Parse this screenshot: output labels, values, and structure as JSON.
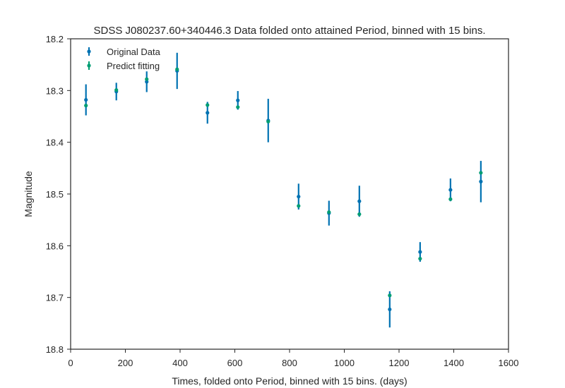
{
  "chart_data": {
    "type": "scatter",
    "title": "SDSS J080237.60+340446.3 Data folded onto attained Period, binned with 15 bins.",
    "xlabel": "Times, folded onto Period, binned with 15 bins. (days)",
    "ylabel": "Magnitude",
    "xlim": [
      0,
      1600
    ],
    "ylim": [
      18.8,
      18.2
    ],
    "y_inverted": true,
    "xticks": [
      "0",
      "200",
      "400",
      "600",
      "800",
      "1000",
      "1200",
      "1400",
      "1600"
    ],
    "yticks": [
      "18.2",
      "18.3",
      "18.4",
      "18.5",
      "18.6",
      "18.7",
      "18.8"
    ],
    "grid": false,
    "legend_position": "upper-left",
    "series": [
      {
        "name": "Original Data",
        "color": "#0072b2",
        "x": [
          56,
          167,
          278,
          389,
          500,
          611,
          722,
          833,
          944,
          1055,
          1166,
          1277,
          1388,
          1499
        ],
        "y": [
          18.318,
          18.302,
          18.283,
          18.262,
          18.343,
          18.319,
          18.358,
          18.505,
          18.537,
          18.514,
          18.723,
          18.612,
          18.492,
          18.476
        ],
        "yerr": [
          0.03,
          0.017,
          0.02,
          0.035,
          0.021,
          0.018,
          0.042,
          0.025,
          0.024,
          0.03,
          0.035,
          0.019,
          0.022,
          0.04
        ]
      },
      {
        "name": "Predict fitting",
        "color": "#009e73",
        "x": [
          56,
          167,
          278,
          389,
          500,
          611,
          722,
          833,
          944,
          1055,
          1166,
          1277,
          1388,
          1499
        ],
        "y": [
          18.329,
          18.299,
          18.278,
          18.259,
          18.328,
          18.332,
          18.36,
          18.523,
          18.535,
          18.539,
          18.696,
          18.625,
          18.51,
          18.459
        ],
        "yerr": [
          0.002,
          0.002,
          0.002,
          0.002,
          0.002,
          0.002,
          0.002,
          0.002,
          0.002,
          0.002,
          0.003,
          0.002,
          0.002,
          0.002
        ]
      }
    ]
  }
}
